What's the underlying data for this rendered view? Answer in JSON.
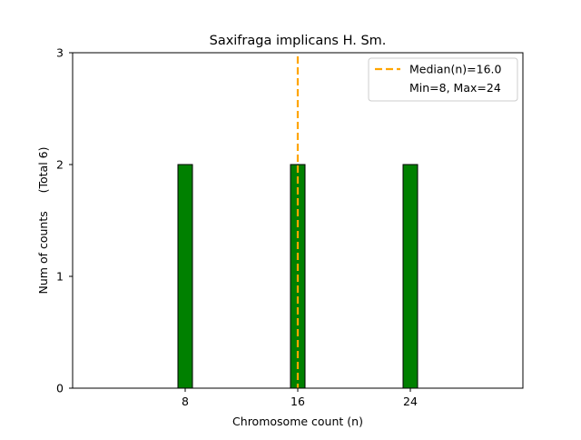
{
  "chart_data": {
    "type": "bar",
    "title": "Saxifraga implicans H. Sm.",
    "xlabel": "Chromosome count (n)",
    "ylabel": "Num of counts     (Total 6)",
    "x": [
      8,
      16,
      24
    ],
    "values": [
      2,
      2,
      2
    ],
    "xlim": [
      0,
      32
    ],
    "ylim": [
      0,
      3
    ],
    "xticks": [
      "8",
      "16",
      "24"
    ],
    "yticks": [
      "0",
      "1",
      "2",
      "3"
    ],
    "median": 16.0,
    "legend": {
      "placement": "top-right",
      "entries": [
        "Median(n)=16.0",
        "Min=8, Max=24"
      ]
    },
    "colors": {
      "bar_fill": "#008000",
      "bar_edge": "#000000",
      "median_line": "#FFA500"
    },
    "grid": false
  }
}
